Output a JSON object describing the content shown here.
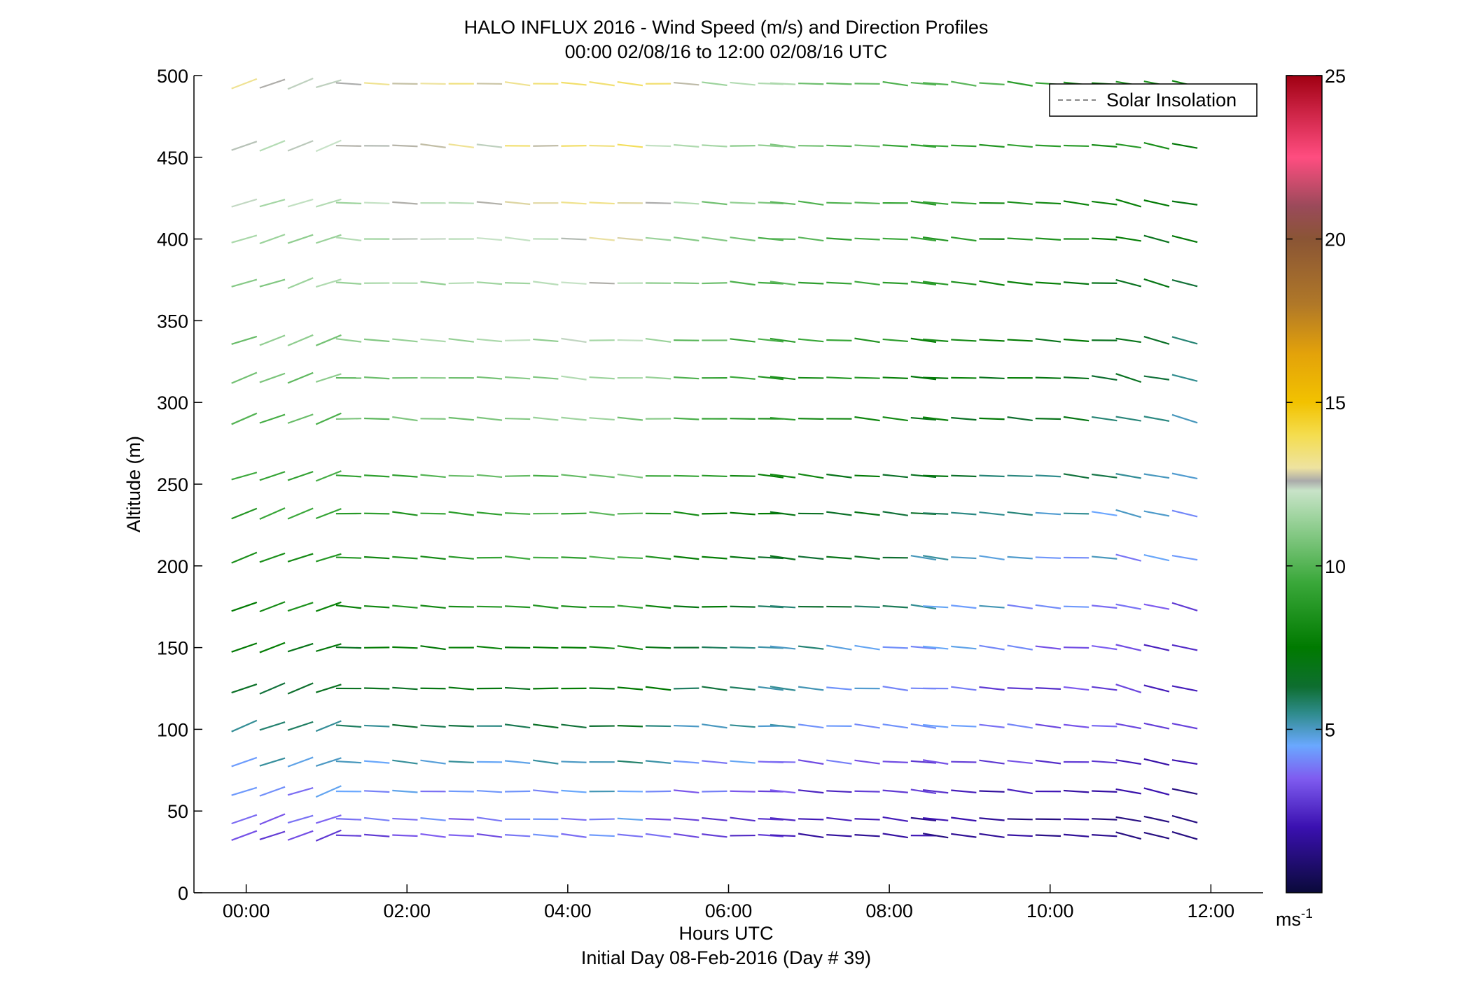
{
  "chart_data": {
    "type": "wind_barbs",
    "title": "HALO INFLUX 2016 - Wind Speed (m/s) and Direction Profiles",
    "subtitle": "00:00 02/08/16 to 12:00 02/08/16  UTC",
    "xlabel": "Hours UTC",
    "xlabel2": "Initial Day 08-Feb-2016 (Day # 39)",
    "ylabel": "Altitude (m)",
    "xlim": [
      -0.65,
      12.65
    ],
    "ylim": [
      0,
      500
    ],
    "x_ticks": [
      {
        "value": 0,
        "label": "00:00"
      },
      {
        "value": 2,
        "label": "02:00"
      },
      {
        "value": 4,
        "label": "04:00"
      },
      {
        "value": 6,
        "label": "06:00"
      },
      {
        "value": 8,
        "label": "08:00"
      },
      {
        "value": 10,
        "label": "10:00"
      },
      {
        "value": 12,
        "label": "12:00"
      }
    ],
    "y_ticks": [
      0,
      50,
      100,
      150,
      200,
      250,
      300,
      350,
      400,
      450,
      500
    ],
    "legend": {
      "label": "Solar Insolation",
      "position": "top-right",
      "line_style": "dashed",
      "color": "#888888"
    },
    "colorbar": {
      "min": 0,
      "max": 25,
      "ticks": [
        5,
        10,
        15,
        20,
        25
      ],
      "unit_label": "ms",
      "unit_exponent": "-1",
      "colormap_stops": [
        {
          "v": 0,
          "c": "#0a0a3a"
        },
        {
          "v": 2,
          "c": "#3a10b0"
        },
        {
          "v": 3.5,
          "c": "#7f5cf0"
        },
        {
          "v": 4.5,
          "c": "#6aa8ff"
        },
        {
          "v": 5.5,
          "c": "#2e8b8b"
        },
        {
          "v": 6.3,
          "c": "#0e6e30"
        },
        {
          "v": 7.5,
          "c": "#007a00"
        },
        {
          "v": 9.5,
          "c": "#3aa83a"
        },
        {
          "v": 11.5,
          "c": "#9fd49f"
        },
        {
          "v": 12.3,
          "c": "#c8e3c8"
        },
        {
          "v": 12.6,
          "c": "#aaaaaa"
        },
        {
          "v": 13,
          "c": "#eee3a0"
        },
        {
          "v": 14,
          "c": "#f4dd4f"
        },
        {
          "v": 15,
          "c": "#f2c200"
        },
        {
          "v": 16.5,
          "c": "#e3a20a"
        },
        {
          "v": 18,
          "c": "#b07828"
        },
        {
          "v": 20,
          "c": "#8a5535"
        },
        {
          "v": 21,
          "c": "#9a4a5a"
        },
        {
          "v": 22.5,
          "c": "#ff4d80"
        },
        {
          "v": 24,
          "c": "#c82040"
        },
        {
          "v": 25,
          "c": "#a00012"
        }
      ]
    },
    "altitudes": [
      35,
      45,
      62,
      80,
      102,
      125,
      150,
      175,
      205,
      232,
      255,
      290,
      315,
      338,
      373,
      400,
      422,
      457,
      495
    ],
    "time_groups": [
      {
        "start": -0.2,
        "end": 1.1,
        "dt": 0.35
      },
      {
        "start": 1.1,
        "end": 6.5,
        "dt": 0.35
      },
      {
        "start": 6.5,
        "end": 8.4,
        "dt": 0.35
      },
      {
        "start": 8.4,
        "end": 10.8,
        "dt": 0.35
      },
      {
        "start": 10.8,
        "end": 11.8,
        "dt": 0.35
      }
    ],
    "speed_profile": [
      {
        "alt": 35,
        "speed": 3.0
      },
      {
        "alt": 62,
        "speed": 3.8
      },
      {
        "alt": 80,
        "speed": 4.5
      },
      {
        "alt": 102,
        "speed": 5.5
      },
      {
        "alt": 125,
        "speed": 6.2
      },
      {
        "alt": 150,
        "speed": 6.8
      },
      {
        "alt": 175,
        "speed": 7.5
      },
      {
        "alt": 205,
        "speed": 8.0
      },
      {
        "alt": 232,
        "speed": 8.5
      },
      {
        "alt": 255,
        "speed": 9.0
      },
      {
        "alt": 290,
        "speed": 9.8
      },
      {
        "alt": 338,
        "speed": 10.5
      },
      {
        "alt": 400,
        "speed": 11.2
      },
      {
        "alt": 457,
        "speed": 12.0
      },
      {
        "alt": 495,
        "speed": 12.4
      }
    ],
    "speed_adjust_by_time": [
      {
        "x": -0.2,
        "d": 0.5
      },
      {
        "x": 1.1,
        "d": 0.5
      },
      {
        "x": 3.0,
        "d": 1.0
      },
      {
        "x": 4.5,
        "d": 1.5
      },
      {
        "x": 5.5,
        "d": -0.3
      },
      {
        "x": 6.5,
        "d": -1.2
      },
      {
        "x": 8.5,
        "d": -2.5
      },
      {
        "x": 10.5,
        "d": -3.5
      },
      {
        "x": 11.8,
        "d": -4.5
      }
    ],
    "direction_note": "predominantly westerly flow (barbs slope down to the right), stronger NW component late in the period"
  }
}
